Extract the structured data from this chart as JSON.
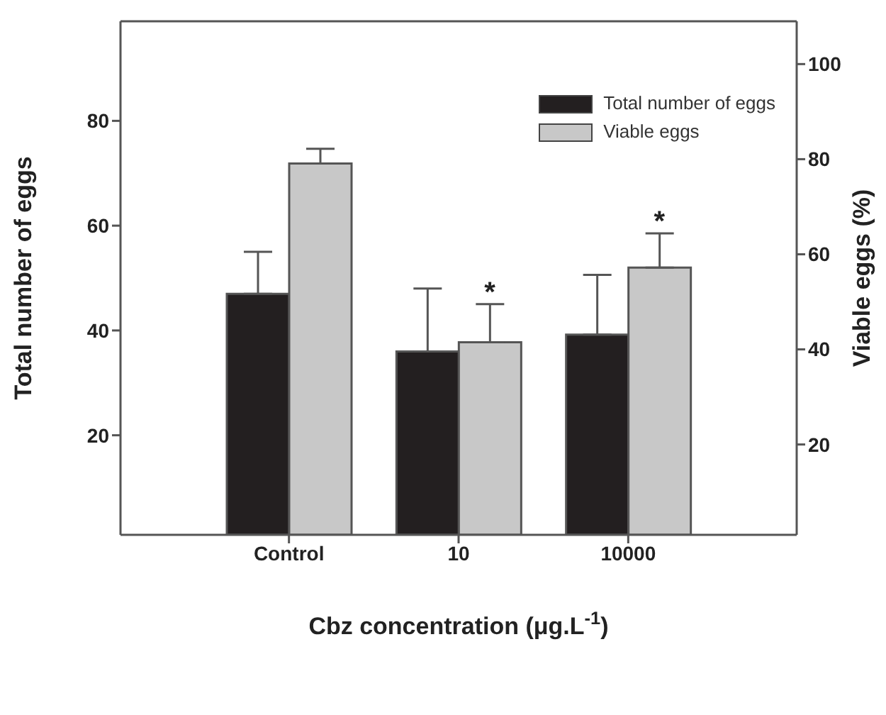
{
  "chart_data": {
    "type": "bar",
    "xlabel": "Cbz concentration (μg.L$^{-1}$)",
    "ylabel": "Total number of eggs",
    "y2label": "Viable eggs (%)",
    "categories": [
      "Control",
      "10",
      "10000"
    ],
    "series": [
      {
        "name": "Total number of eggs",
        "color": "#231f20",
        "values": [
          47,
          36,
          39.2
        ],
        "errors": [
          [
            47,
            55
          ],
          [
            36,
            48
          ],
          [
            39.2,
            50.6
          ]
        ]
      },
      {
        "name": "Viable eggs",
        "color": "#c8c8c8",
        "axis": "y2",
        "values": [
          79.1,
          41.5,
          57.2
        ],
        "errors": [
          [
            79.1,
            82.2
          ],
          [
            41.5,
            49.5
          ],
          [
            57.2,
            64.4
          ]
        ]
      }
    ],
    "ylim": [
      1,
      99
    ],
    "yticks": [
      20,
      40,
      60,
      80
    ],
    "y2lim": [
      1,
      109
    ],
    "y2ticks": [
      20,
      40,
      60,
      80,
      100
    ],
    "annotations": [
      "*",
      "*"
    ],
    "legend": "top right",
    "grid": false
  }
}
